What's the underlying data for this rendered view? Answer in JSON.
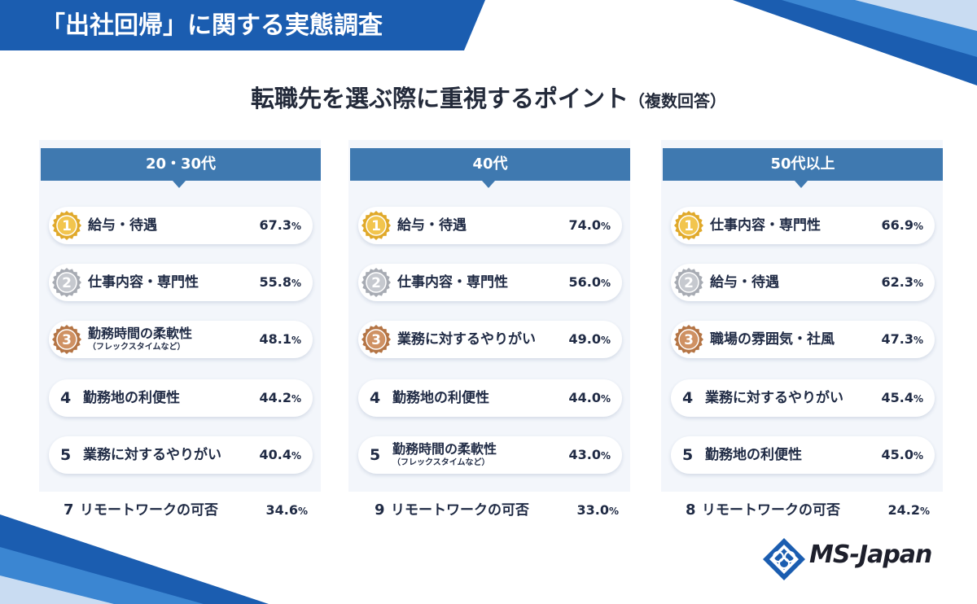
{
  "banner": {
    "title": "「出社回帰」に関する実態調査"
  },
  "subtitle": {
    "main": "転職先を選ぶ際に重視するポイント",
    "note": "（複数回答）"
  },
  "colors": {
    "header_blue": "#3f79b0",
    "banner_blue": "#1b5db0",
    "gold": "#e0a92a",
    "silver": "#a7abb3",
    "bronze": "#b57545"
  },
  "columns": [
    {
      "header": "20・30代",
      "items": [
        {
          "rank": "1",
          "medal": "gold",
          "label": "給与・待遇",
          "sub": "",
          "value": "67.3",
          "unit": "%"
        },
        {
          "rank": "2",
          "medal": "silver",
          "label": "仕事内容・専門性",
          "sub": "",
          "value": "55.8",
          "unit": "%"
        },
        {
          "rank": "3",
          "medal": "bronze",
          "label": "勤務時間の柔軟性",
          "sub": "（フレックスタイムなど）",
          "value": "48.1",
          "unit": "%"
        },
        {
          "rank": "4",
          "medal": "",
          "label": "勤務地の利便性",
          "sub": "",
          "value": "44.2",
          "unit": "%"
        },
        {
          "rank": "5",
          "medal": "",
          "label": "業務に対するやりがい",
          "sub": "",
          "value": "40.4",
          "unit": "%"
        }
      ],
      "extra": {
        "rank": "7",
        "label": "リモートワークの可否",
        "value": "34.6",
        "unit": "%"
      }
    },
    {
      "header": "40代",
      "items": [
        {
          "rank": "1",
          "medal": "gold",
          "label": "給与・待遇",
          "sub": "",
          "value": "74.0",
          "unit": "%"
        },
        {
          "rank": "2",
          "medal": "silver",
          "label": "仕事内容・専門性",
          "sub": "",
          "value": "56.0",
          "unit": "%"
        },
        {
          "rank": "3",
          "medal": "bronze",
          "label": "業務に対するやりがい",
          "sub": "",
          "value": "49.0",
          "unit": "%"
        },
        {
          "rank": "4",
          "medal": "",
          "label": "勤務地の利便性",
          "sub": "",
          "value": "44.0",
          "unit": "%"
        },
        {
          "rank": "5",
          "medal": "",
          "label": "勤務時間の柔軟性",
          "sub": "（フレックスタイムなど）",
          "value": "43.0",
          "unit": "%"
        }
      ],
      "extra": {
        "rank": "9",
        "label": "リモートワークの可否",
        "value": "33.0",
        "unit": "%"
      }
    },
    {
      "header": "50代以上",
      "items": [
        {
          "rank": "1",
          "medal": "gold",
          "label": "仕事内容・専門性",
          "sub": "",
          "value": "66.9",
          "unit": "%"
        },
        {
          "rank": "2",
          "medal": "silver",
          "label": "給与・待遇",
          "sub": "",
          "value": "62.3",
          "unit": "%"
        },
        {
          "rank": "3",
          "medal": "bronze",
          "label": "職場の雰囲気・社風",
          "sub": "",
          "value": "47.3",
          "unit": "%"
        },
        {
          "rank": "4",
          "medal": "",
          "label": "業務に対するやりがい",
          "sub": "",
          "value": "45.4",
          "unit": "%"
        },
        {
          "rank": "5",
          "medal": "",
          "label": "勤務地の利便性",
          "sub": "",
          "value": "45.0",
          "unit": "%"
        }
      ],
      "extra": {
        "rank": "8",
        "label": "リモートワークの可否",
        "value": "24.2",
        "unit": "%"
      }
    }
  ],
  "logo": {
    "text": "MS-Japan",
    "icon": "ms-japan-diamond-icon"
  }
}
